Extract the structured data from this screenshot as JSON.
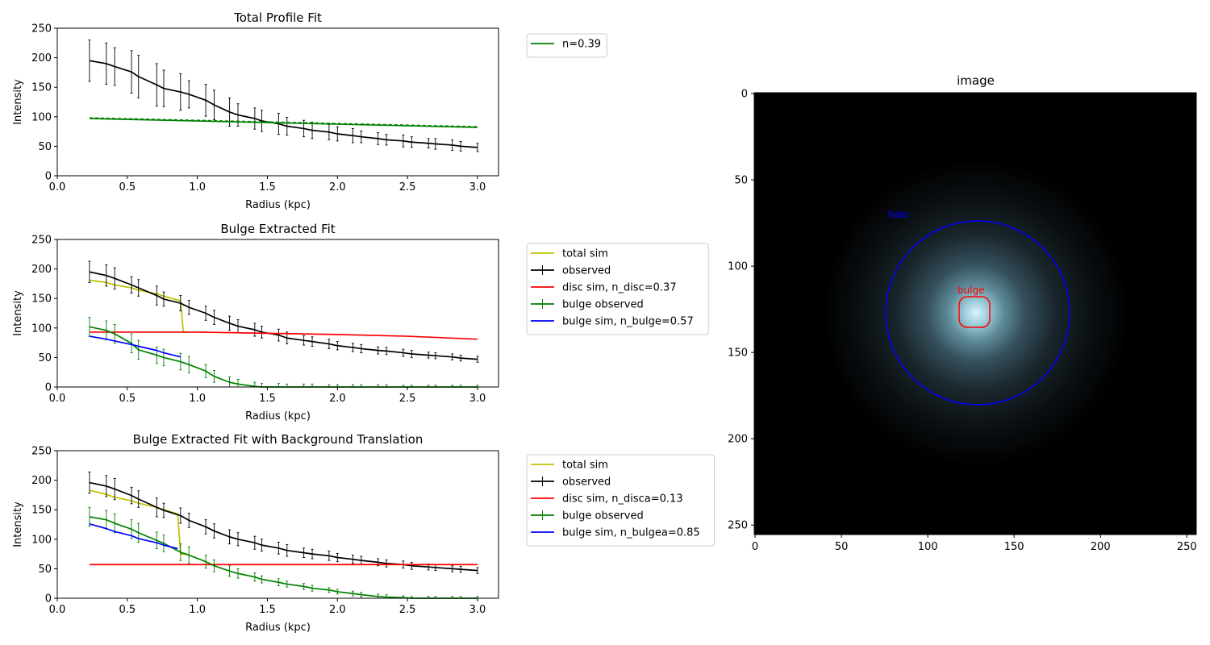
{
  "chart_data": [
    {
      "type": "line",
      "title": "Total Profile Fit",
      "xlabel": "Radius (kpc)",
      "ylabel": "Intensity",
      "xlim": [
        0.0,
        3.15
      ],
      "ylim": [
        0,
        250
      ],
      "xticks": [
        "0.0",
        "0.5",
        "1.0",
        "1.5",
        "2.0",
        "2.5",
        "3.0"
      ],
      "yticks": [
        "0",
        "50",
        "100",
        "150",
        "200",
        "250"
      ],
      "legend_location": "outside-top-right",
      "series": [
        {
          "name": "",
          "color": "#000000",
          "errorbars": true,
          "x": [
            0.23,
            0.35,
            0.41,
            0.53,
            0.58,
            0.71,
            0.76,
            0.88,
            0.94,
            1.06,
            1.12,
            1.23,
            1.29,
            1.41,
            1.46,
            1.58,
            1.64,
            1.76,
            1.82,
            1.94,
            2.0,
            2.11,
            2.17,
            2.29,
            2.35,
            2.47,
            2.53,
            2.65,
            2.7,
            2.82,
            2.88,
            3.0
          ],
          "y": [
            195,
            190,
            185,
            176,
            168,
            154,
            148,
            142,
            138,
            128,
            120,
            108,
            103,
            97,
            93,
            88,
            84,
            80,
            77,
            74,
            71,
            68,
            66,
            63,
            61,
            59,
            57,
            55,
            54,
            52,
            50,
            48
          ],
          "err": [
            35,
            35,
            32,
            36,
            36,
            36,
            31,
            31,
            23,
            27,
            25,
            24,
            19,
            18,
            18,
            18,
            15,
            14,
            14,
            13,
            12,
            12,
            10,
            10,
            9,
            10,
            9,
            8,
            9,
            9,
            8,
            7
          ]
        },
        {
          "name": "n=0.39",
          "color": "#008000",
          "errorbars": false,
          "x": [
            0.23,
            3.0
          ],
          "y": [
            97,
            82
          ]
        }
      ]
    },
    {
      "type": "line",
      "title": "Bulge Extracted Fit",
      "xlabel": "Radius (kpc)",
      "ylabel": "Intensity",
      "xlim": [
        0.0,
        3.15
      ],
      "ylim": [
        0,
        250
      ],
      "xticks": [
        "0.0",
        "0.5",
        "1.0",
        "1.5",
        "2.0",
        "2.5",
        "3.0"
      ],
      "yticks": [
        "0",
        "50",
        "100",
        "150",
        "200",
        "250"
      ],
      "legend_location": "outside-right",
      "series": [
        {
          "name": "total sim",
          "color": "#bfbf00",
          "errorbars": false,
          "x": [
            0.23,
            0.35,
            0.41,
            0.53,
            0.58,
            0.71,
            0.76,
            0.88,
            0.9,
            0.94
          ],
          "y": [
            181,
            177,
            173,
            168,
            164,
            158,
            154,
            146,
            93,
            93
          ]
        },
        {
          "name": "observed",
          "color": "#000000",
          "errorbars": true,
          "x": [
            0.23,
            0.35,
            0.41,
            0.53,
            0.58,
            0.71,
            0.76,
            0.88,
            0.94,
            1.06,
            1.12,
            1.23,
            1.29,
            1.41,
            1.46,
            1.58,
            1.64,
            1.76,
            1.82,
            1.94,
            2.0,
            2.11,
            2.17,
            2.29,
            2.35,
            2.47,
            2.53,
            2.65,
            2.7,
            2.82,
            2.88,
            3.0
          ],
          "y": [
            195,
            189,
            184,
            173,
            168,
            155,
            149,
            142,
            135,
            125,
            118,
            108,
            103,
            97,
            93,
            88,
            83,
            79,
            77,
            73,
            70,
            67,
            65,
            62,
            61,
            58,
            56,
            54,
            53,
            51,
            49,
            47
          ],
          "err": [
            18,
            18,
            18,
            14,
            14,
            16,
            12,
            13,
            12,
            12,
            12,
            12,
            11,
            11,
            10,
            10,
            10,
            8,
            8,
            8,
            7,
            7,
            7,
            6,
            6,
            6,
            6,
            5,
            5,
            5,
            5,
            5
          ]
        },
        {
          "name": "disc sim, n_disc=0.37",
          "color": "#ff0000",
          "errorbars": false,
          "x": [
            0.23,
            1.0,
            1.5,
            2.0,
            2.5,
            3.0
          ],
          "y": [
            93,
            93,
            91,
            89,
            86,
            81
          ]
        },
        {
          "name": "bulge observed",
          "color": "#008000",
          "errorbars": true,
          "x": [
            0.23,
            0.35,
            0.41,
            0.53,
            0.58,
            0.71,
            0.76,
            0.88,
            0.94,
            1.06,
            1.12,
            1.23,
            1.29,
            1.41,
            1.46,
            1.58,
            1.64,
            1.76,
            1.82,
            1.94,
            2.0,
            2.11,
            2.17,
            2.29,
            2.35,
            2.47,
            2.53,
            2.65,
            2.7,
            2.82,
            2.88,
            3.0
          ],
          "y": [
            102,
            96,
            90,
            74,
            63,
            54,
            50,
            43,
            38,
            27,
            18,
            8,
            5,
            1,
            0,
            0,
            0,
            0,
            0,
            0,
            0,
            0,
            0,
            0,
            0,
            0,
            0,
            0,
            0,
            0,
            0,
            0
          ],
          "err": [
            16,
            16,
            16,
            16,
            16,
            14,
            14,
            14,
            14,
            11,
            10,
            9,
            8,
            7,
            6,
            6,
            5,
            5,
            5,
            4,
            4,
            4,
            4,
            4,
            4,
            3,
            3,
            3,
            3,
            3,
            3,
            3
          ]
        },
        {
          "name": "bulge sim, n_bulge=0.57",
          "color": "#0000ff",
          "errorbars": false,
          "x": [
            0.23,
            0.35,
            0.41,
            0.53,
            0.58,
            0.71,
            0.76,
            0.88
          ],
          "y": [
            86,
            81,
            78,
            72,
            69,
            62,
            58,
            51
          ]
        }
      ]
    },
    {
      "type": "line",
      "title": "Bulge Extracted Fit with Background Translation",
      "xlabel": "Radius (kpc)",
      "ylabel": "Intensity",
      "xlim": [
        0.0,
        3.15
      ],
      "ylim": [
        0,
        250
      ],
      "xticks": [
        "0.0",
        "0.5",
        "1.0",
        "1.5",
        "2.0",
        "2.5",
        "3.0"
      ],
      "yticks": [
        "0",
        "50",
        "100",
        "150",
        "200",
        "250"
      ],
      "legend_location": "outside-right",
      "series": [
        {
          "name": "total sim",
          "color": "#bfbf00",
          "errorbars": false,
          "x": [
            0.23,
            0.35,
            0.41,
            0.53,
            0.58,
            0.71,
            0.76,
            0.86,
            0.88,
            0.94
          ],
          "y": [
            183,
            176,
            171,
            165,
            161,
            154,
            150,
            143,
            75,
            74
          ]
        },
        {
          "name": "observed",
          "color": "#000000",
          "errorbars": true,
          "x": [
            0.23,
            0.35,
            0.41,
            0.53,
            0.58,
            0.71,
            0.76,
            0.88,
            0.94,
            1.06,
            1.12,
            1.23,
            1.29,
            1.41,
            1.46,
            1.58,
            1.64,
            1.76,
            1.82,
            1.94,
            2.0,
            2.11,
            2.17,
            2.29,
            2.35,
            2.47,
            2.53,
            2.65,
            2.7,
            2.82,
            2.88,
            3.0
          ],
          "y": [
            196,
            190,
            185,
            174,
            168,
            154,
            149,
            140,
            132,
            121,
            114,
            104,
            100,
            94,
            90,
            85,
            81,
            77,
            75,
            72,
            69,
            66,
            64,
            61,
            59,
            57,
            55,
            53,
            52,
            50,
            49,
            47
          ],
          "err": [
            18,
            18,
            18,
            14,
            14,
            16,
            12,
            13,
            12,
            12,
            12,
            12,
            11,
            11,
            10,
            10,
            10,
            8,
            8,
            8,
            7,
            7,
            7,
            6,
            6,
            6,
            6,
            5,
            5,
            5,
            5,
            5
          ]
        },
        {
          "name": "disc sim, n_disca=0.13",
          "color": "#ff0000",
          "errorbars": false,
          "x": [
            0.23,
            3.0
          ],
          "y": [
            57,
            57
          ]
        },
        {
          "name": "bulge observed",
          "color": "#008000",
          "errorbars": true,
          "x": [
            0.23,
            0.35,
            0.41,
            0.53,
            0.58,
            0.71,
            0.76,
            0.88,
            0.94,
            1.06,
            1.12,
            1.23,
            1.29,
            1.41,
            1.46,
            1.58,
            1.64,
            1.76,
            1.82,
            1.94,
            2.0,
            2.11,
            2.17,
            2.29,
            2.35,
            2.47,
            2.53,
            2.65,
            2.7,
            2.82,
            2.88,
            3.0
          ],
          "y": [
            138,
            133,
            127,
            117,
            111,
            98,
            93,
            78,
            73,
            62,
            55,
            46,
            42,
            36,
            32,
            27,
            24,
            20,
            17,
            14,
            11,
            8,
            6,
            3,
            2,
            1,
            0,
            0,
            0,
            0,
            0,
            0
          ],
          "err": [
            16,
            16,
            16,
            16,
            16,
            14,
            14,
            14,
            14,
            11,
            10,
            9,
            8,
            7,
            6,
            6,
            5,
            5,
            5,
            4,
            4,
            4,
            4,
            4,
            4,
            3,
            3,
            3,
            3,
            3,
            3,
            3
          ]
        },
        {
          "name": "bulge sim, n_bulgea=0.85",
          "color": "#0000ff",
          "errorbars": false,
          "x": [
            0.23,
            0.35,
            0.41,
            0.53,
            0.58,
            0.71,
            0.76,
            0.86
          ],
          "y": [
            126,
            118,
            113,
            106,
            101,
            94,
            90,
            84
          ]
        }
      ]
    },
    {
      "type": "heatmap",
      "title": "image",
      "colormap": "bone-like (black to pale cyan)",
      "xlim": [
        0,
        256
      ],
      "ylim": [
        256,
        0
      ],
      "xticks": [
        "0",
        "50",
        "100",
        "150",
        "200",
        "250"
      ],
      "yticks": [
        "0",
        "50",
        "100",
        "150",
        "200",
        "250"
      ],
      "source_center": [
        128,
        127
      ],
      "annotations": [
        {
          "label": "halo",
          "color": "#0000ff",
          "shape": "circle",
          "center": [
            130,
            128
          ],
          "radius": 53
        },
        {
          "label": "bulge",
          "color": "#ff0000",
          "shape": "rounded-square",
          "center": [
            127,
            127
          ],
          "radius": 9
        }
      ]
    }
  ]
}
